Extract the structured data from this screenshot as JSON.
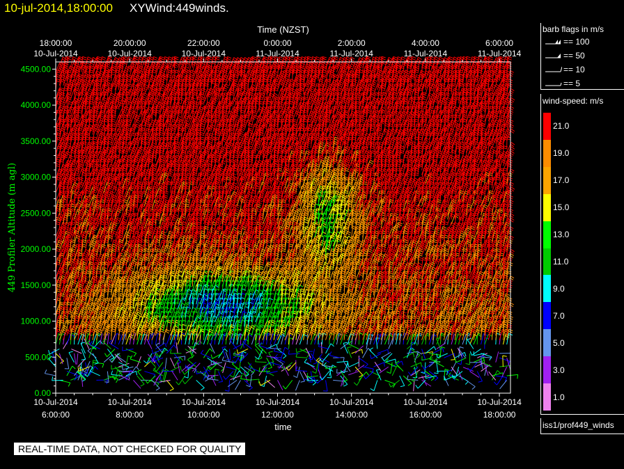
{
  "header": {
    "datetime": "10-jul-2014,18:00:00",
    "product": "XYWind:449winds."
  },
  "warning": "REAL-TIME DATA, NOT CHECKED FOR QUALITY",
  "barb_legend": {
    "title": "barb flags in m/s",
    "items": [
      {
        "label": "== 100",
        "kind": "pennant2"
      },
      {
        "label": "== 50",
        "kind": "pennant"
      },
      {
        "label": "== 10",
        "kind": "full"
      },
      {
        "label": "== 5",
        "kind": "half"
      }
    ]
  },
  "speed_legend": {
    "title": "wind-speed: m/s",
    "levels": [
      {
        "label": "21.0",
        "color": "#ff0000"
      },
      {
        "label": "19.0",
        "color": "#ff8c00"
      },
      {
        "label": "17.0",
        "color": "#ffa500"
      },
      {
        "label": "15.0",
        "color": "#ffff00"
      },
      {
        "label": "13.0",
        "color": "#00ff00"
      },
      {
        "label": "11.0",
        "color": "#00cc00"
      },
      {
        "label": "9.0",
        "color": "#00ffff"
      },
      {
        "label": "7.0",
        "color": "#0000ff"
      },
      {
        "label": "5.0",
        "color": "#6495ed"
      },
      {
        "label": "3.0",
        "color": "#a020f0"
      },
      {
        "label": "1.0",
        "color": "#ee82ee"
      }
    ]
  },
  "source": "iss1/prof449_winds",
  "chart_data": {
    "type": "wind-barb",
    "ylabel": "449 Profiler Altitude (m agl)",
    "top_axis_label": "Time (NZST)",
    "xlabel": "time",
    "ylim": [
      0,
      4600
    ],
    "yticks": [
      "0.00",
      "500.00",
      "1000.00",
      "1500.00",
      "2000.00",
      "2500.00",
      "3000.00",
      "3500.00",
      "4000.00",
      "4500.00"
    ],
    "x_hours": [
      6,
      8,
      10,
      12,
      14,
      16,
      18
    ],
    "xlim_hours": [
      6,
      18.3
    ],
    "bottom_ticks": [
      {
        "date": "10-Jul-2014",
        "time": "6:00:00"
      },
      {
        "date": "10-Jul-2014",
        "time": "8:00:00"
      },
      {
        "date": "10-Jul-2014",
        "time": "10:00:00"
      },
      {
        "date": "10-Jul-2014",
        "time": "12:00:00"
      },
      {
        "date": "10-Jul-2014",
        "time": "14:00:00"
      },
      {
        "date": "10-Jul-2014",
        "time": "16:00:00"
      },
      {
        "date": "10-Jul-2014",
        "time": "18:00:00"
      }
    ],
    "top_ticks": [
      {
        "time": "18:00:00",
        "date": "10-Jul-2014"
      },
      {
        "time": "20:00:00",
        "date": "10-Jul-2014"
      },
      {
        "time": "22:00:00",
        "date": "10-Jul-2014"
      },
      {
        "time": "0:00:00",
        "date": "11-Jul-2014"
      },
      {
        "time": "2:00:00",
        "date": "11-Jul-2014"
      },
      {
        "time": "4:00:00",
        "date": "11-Jul-2014"
      },
      {
        "time": "6:00:00",
        "date": "11-Jul-2014"
      }
    ],
    "grid": false,
    "speed_colors": [
      "#ee82ee",
      "#a020f0",
      "#6495ed",
      "#0000ff",
      "#00ffff",
      "#00cc00",
      "#00ff00",
      "#ffff00",
      "#ffa500",
      "#ff8c00",
      "#ff0000"
    ]
  }
}
